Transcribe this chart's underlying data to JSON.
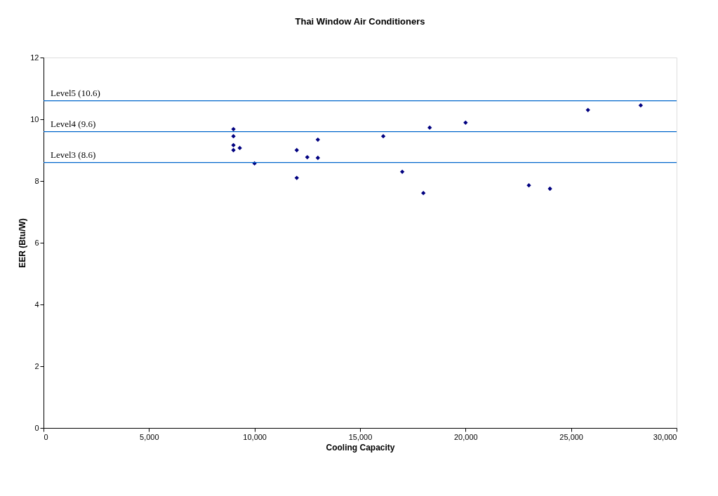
{
  "chart_data": {
    "type": "scatter",
    "title": "Thai Window Air Conditioners",
    "xlabel": "Cooling Capacity",
    "ylabel": "EER (Btu/W)",
    "x": [
      9000,
      9000,
      9000,
      9000,
      9300,
      10000,
      12000,
      12000,
      12500,
      13000,
      13000,
      16100,
      17000,
      18000,
      18300,
      20000,
      23000,
      24000,
      25800,
      28300
    ],
    "series": [
      {
        "color": "#000080",
        "values": [
          9.68,
          9.45,
          9.16,
          9.0,
          9.07,
          8.57,
          9.0,
          8.1,
          8.77,
          9.34,
          8.75,
          9.45,
          8.3,
          7.61,
          9.73,
          9.89,
          7.86,
          7.75,
          10.3,
          10.45
        ]
      }
    ],
    "xlim": [
      0,
      30000
    ],
    "ylim": [
      0,
      12
    ],
    "xticks": [
      0,
      {
        "value": 5000,
        "label": "5,000"
      },
      {
        "value": 10000,
        "label": "10,000"
      },
      {
        "value": 15000,
        "label": "15,000"
      },
      {
        "value": 20000,
        "label": "20,000"
      },
      {
        "value": 25000,
        "label": "25,000"
      },
      {
        "value": 30000,
        "label": "30,000"
      }
    ],
    "yticks": [
      0,
      2,
      4,
      6,
      8,
      10,
      12
    ],
    "ref_lines": [
      {
        "axis": "y",
        "value": 10.6,
        "label": "Level5 (10.6)",
        "color": "#0066cc"
      },
      {
        "axis": "y",
        "value": 9.6,
        "label": "Level4 (9.6)",
        "color": "#0066cc"
      },
      {
        "axis": "y",
        "value": 8.6,
        "label": "Level3 (8.6)",
        "color": "#0066cc"
      }
    ],
    "marker": "diamond",
    "grid": false
  }
}
